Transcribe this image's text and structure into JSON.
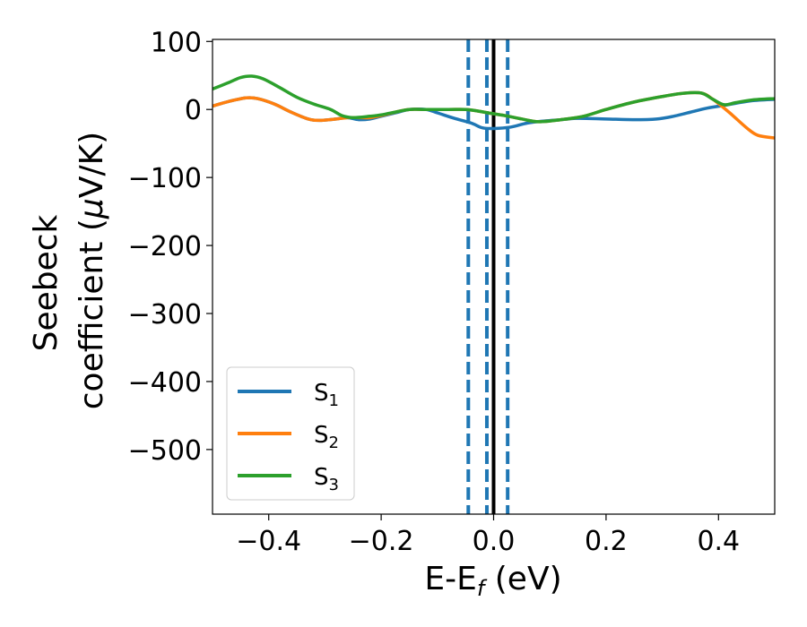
{
  "chart_data": {
    "type": "line",
    "title": "",
    "xlabel": {
      "main": "E-E",
      "sub": "f",
      "unit": " (eV)"
    },
    "ylabel": {
      "line1": "Seebeck",
      "line2": "coefficient  (",
      "mu": "μ",
      "unit": "V/K)"
    },
    "xlim": [
      -0.5,
      0.5
    ],
    "ylim": [
      -595,
      103
    ],
    "xticks": [
      -0.4,
      -0.2,
      0.0,
      0.2,
      0.4
    ],
    "xtick_labels": [
      "−0.4",
      "−0.2",
      "0.0",
      "0.2",
      "0.4"
    ],
    "yticks": [
      100,
      0,
      -100,
      -200,
      -300,
      -400,
      -500
    ],
    "ytick_labels": [
      "100",
      "0",
      "−100",
      "−200",
      "−300",
      "−400",
      "−500"
    ],
    "grid": false,
    "legend_position": "lower-left",
    "series": [
      {
        "name": {
          "base": "S",
          "sub": "1"
        },
        "color": "#1f77b4",
        "points": [
          [
            -0.5,
            5
          ],
          [
            -0.47,
            12
          ],
          [
            -0.44,
            17
          ],
          [
            -0.42,
            16
          ],
          [
            -0.39,
            8
          ],
          [
            -0.36,
            -4
          ],
          [
            -0.33,
            -14
          ],
          [
            -0.31,
            -16
          ],
          [
            -0.28,
            -14
          ],
          [
            -0.26,
            -12
          ],
          [
            -0.24,
            -15
          ],
          [
            -0.22,
            -14
          ],
          [
            -0.2,
            -10
          ],
          [
            -0.17,
            -4
          ],
          [
            -0.15,
            0
          ],
          [
            -0.12,
            0
          ],
          [
            -0.1,
            -5
          ],
          [
            -0.07,
            -13
          ],
          [
            -0.04,
            -20
          ],
          [
            -0.02,
            -27
          ],
          [
            0.0,
            -28
          ],
          [
            0.03,
            -26
          ],
          [
            0.06,
            -20
          ],
          [
            0.09,
            -17
          ],
          [
            0.12,
            -15
          ],
          [
            0.15,
            -13
          ],
          [
            0.2,
            -14
          ],
          [
            0.25,
            -15
          ],
          [
            0.29,
            -14
          ],
          [
            0.32,
            -10
          ],
          [
            0.35,
            -4
          ],
          [
            0.38,
            2
          ],
          [
            0.41,
            6
          ],
          [
            0.43,
            9
          ],
          [
            0.46,
            13
          ],
          [
            0.5,
            15
          ]
        ]
      },
      {
        "name": {
          "base": "S",
          "sub": "2"
        },
        "color": "#ff7f0e",
        "points": [
          [
            -0.5,
            5
          ],
          [
            -0.47,
            12
          ],
          [
            -0.44,
            17
          ],
          [
            -0.42,
            16
          ],
          [
            -0.39,
            8
          ],
          [
            -0.36,
            -4
          ],
          [
            -0.33,
            -14
          ],
          [
            -0.31,
            -16
          ],
          [
            -0.28,
            -14
          ],
          [
            -0.26,
            -12
          ],
          [
            -0.24,
            -12
          ],
          [
            -0.22,
            -12
          ],
          [
            -0.2,
            -9
          ],
          [
            -0.17,
            -3
          ],
          [
            -0.15,
            0
          ],
          [
            -0.12,
            0
          ],
          [
            -0.08,
            0
          ],
          [
            -0.05,
            0
          ],
          [
            -0.03,
            -2
          ],
          [
            -0.01,
            -5
          ],
          [
            0.02,
            -9
          ],
          [
            0.05,
            -14
          ],
          [
            0.08,
            -18
          ],
          [
            0.12,
            -15
          ],
          [
            0.16,
            -10
          ],
          [
            0.2,
            0
          ],
          [
            0.25,
            11
          ],
          [
            0.3,
            19
          ],
          [
            0.34,
            24
          ],
          [
            0.37,
            24
          ],
          [
            0.39,
            15
          ],
          [
            0.42,
            -5
          ],
          [
            0.45,
            -27
          ],
          [
            0.47,
            -38
          ],
          [
            0.5,
            -42
          ]
        ]
      },
      {
        "name": {
          "base": "S",
          "sub": "3"
        },
        "color": "#2ca02c",
        "points": [
          [
            -0.5,
            30
          ],
          [
            -0.47,
            40
          ],
          [
            -0.45,
            47
          ],
          [
            -0.43,
            49
          ],
          [
            -0.41,
            45
          ],
          [
            -0.38,
            32
          ],
          [
            -0.35,
            18
          ],
          [
            -0.32,
            8
          ],
          [
            -0.29,
            0
          ],
          [
            -0.27,
            -9
          ],
          [
            -0.25,
            -12
          ],
          [
            -0.22,
            -10
          ],
          [
            -0.2,
            -8
          ],
          [
            -0.17,
            -3
          ],
          [
            -0.15,
            0
          ],
          [
            -0.12,
            0
          ],
          [
            -0.08,
            0
          ],
          [
            -0.05,
            0
          ],
          [
            -0.03,
            -2
          ],
          [
            -0.01,
            -5
          ],
          [
            0.02,
            -9
          ],
          [
            0.05,
            -14
          ],
          [
            0.08,
            -18
          ],
          [
            0.12,
            -15
          ],
          [
            0.16,
            -10
          ],
          [
            0.2,
            0
          ],
          [
            0.25,
            11
          ],
          [
            0.3,
            19
          ],
          [
            0.34,
            24
          ],
          [
            0.37,
            24
          ],
          [
            0.39,
            15
          ],
          [
            0.41,
            7
          ],
          [
            0.43,
            10
          ],
          [
            0.46,
            14
          ],
          [
            0.5,
            16
          ]
        ]
      }
    ],
    "vertical_lines": [
      {
        "x": -0.045,
        "style": "dashed",
        "color": "#1f77b4"
      },
      {
        "x": -0.012,
        "style": "dashed",
        "color": "#1f77b4"
      },
      {
        "x": 0.025,
        "style": "dashed",
        "color": "#1f77b4"
      },
      {
        "x": 0.0,
        "style": "solid",
        "color": "#000000"
      }
    ]
  }
}
